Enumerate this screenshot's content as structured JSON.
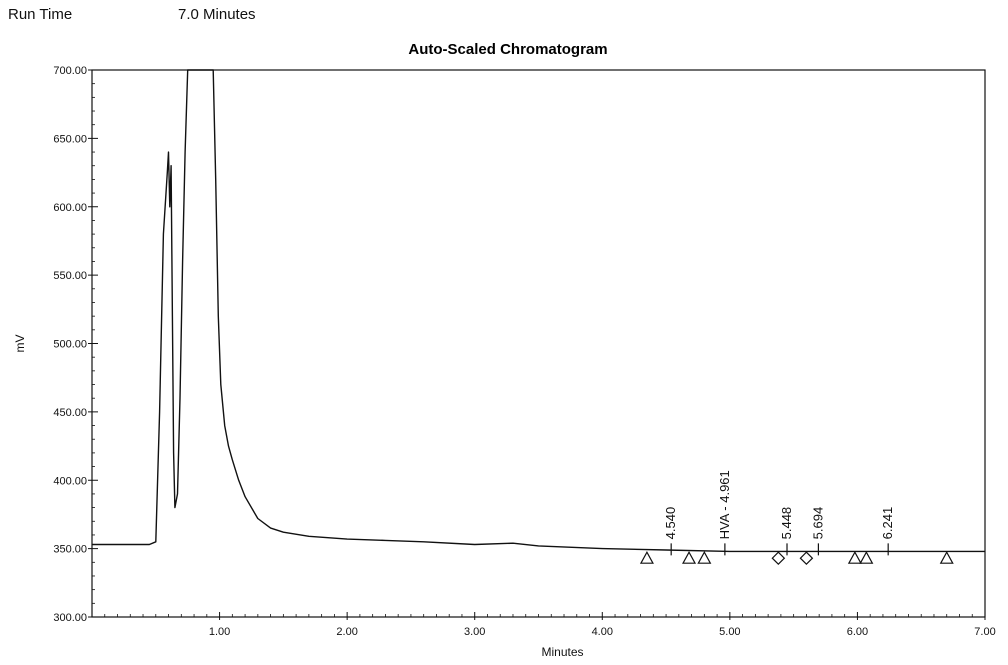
{
  "header": {
    "run_time_label": "Run Time",
    "run_time_value": "7.0 Minutes"
  },
  "chart_data": {
    "type": "line",
    "title": "Auto-Scaled Chromatogram",
    "xlabel": "Minutes",
    "ylabel": "mV",
    "xlim": [
      0,
      7.0
    ],
    "ylim": [
      300,
      700
    ],
    "x_ticks": [
      1.0,
      2.0,
      3.0,
      4.0,
      5.0,
      6.0,
      7.0
    ],
    "x_tick_labels": [
      "1.00",
      "2.00",
      "3.00",
      "4.00",
      "5.00",
      "6.00",
      "7.00"
    ],
    "y_ticks": [
      300,
      350,
      400,
      450,
      500,
      550,
      600,
      650,
      700
    ],
    "y_tick_labels": [
      "300.00",
      "350.00",
      "400.00",
      "450.00",
      "500.00",
      "550.00",
      "600.00",
      "650.00",
      "700.00"
    ],
    "grid": false,
    "series": [
      {
        "x": [
          0,
          0.45,
          0.5,
          0.53,
          0.56,
          0.59,
          0.6,
          0.61,
          0.62,
          0.63,
          0.64,
          0.65,
          0.67,
          0.69,
          0.71,
          0.73,
          0.75,
          0.76,
          0.77,
          0.8,
          0.85,
          0.9,
          0.92,
          0.94,
          0.95,
          0.97,
          0.99,
          1.01,
          1.04,
          1.07,
          1.1,
          1.15,
          1.2,
          1.3,
          1.4,
          1.5,
          1.7,
          2.0,
          2.3,
          2.6,
          3.0,
          3.3,
          3.5,
          4.0,
          4.5,
          5.0,
          5.5,
          6.0,
          6.5,
          7.0
        ],
        "y": [
          353,
          353,
          355,
          450,
          580,
          625,
          640,
          600,
          630,
          520,
          420,
          380,
          390,
          460,
          560,
          640,
          700,
          700,
          700,
          700,
          700,
          700,
          700,
          700,
          700,
          620,
          520,
          470,
          440,
          425,
          415,
          400,
          388,
          372,
          365,
          362,
          359,
          357,
          356,
          355,
          353,
          354,
          352,
          350,
          349,
          348,
          348,
          348,
          348,
          348
        ]
      }
    ],
    "peak_labels": [
      {
        "x": 4.54,
        "text": "4.540"
      },
      {
        "x": 4.961,
        "text": "HVA - 4.961"
      },
      {
        "x": 5.448,
        "text": "5.448"
      },
      {
        "x": 5.694,
        "text": "5.694"
      },
      {
        "x": 6.241,
        "text": "6.241"
      }
    ],
    "markers": [
      {
        "x": 4.35,
        "shape": "triangle"
      },
      {
        "x": 4.68,
        "shape": "triangle"
      },
      {
        "x": 4.8,
        "shape": "triangle"
      },
      {
        "x": 5.38,
        "shape": "diamond"
      },
      {
        "x": 5.6,
        "shape": "diamond"
      },
      {
        "x": 5.98,
        "shape": "triangle"
      },
      {
        "x": 6.07,
        "shape": "triangle"
      },
      {
        "x": 6.7,
        "shape": "triangle"
      }
    ],
    "marker_y": 343,
    "colors": {
      "line": "#111111",
      "axis": "#111111"
    }
  }
}
